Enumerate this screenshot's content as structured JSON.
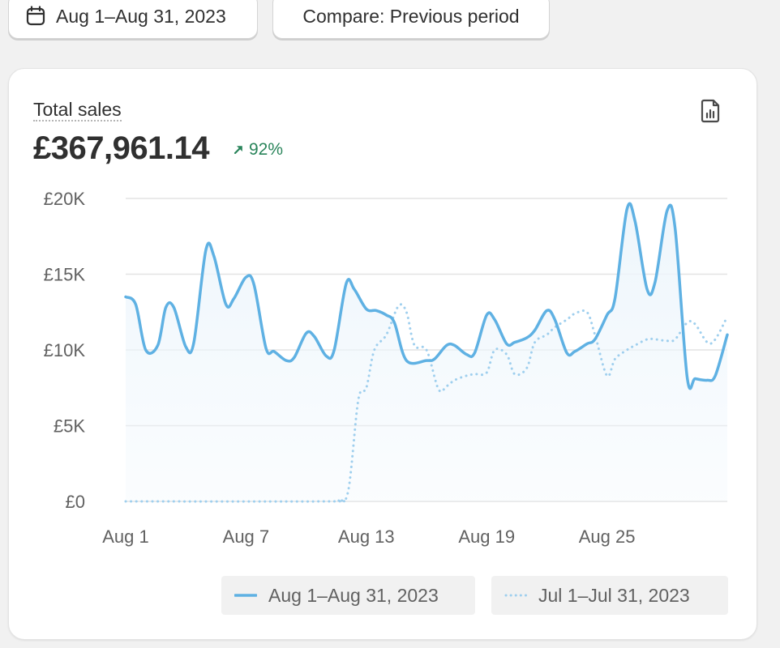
{
  "header": {
    "date_range": "Aug 1–Aug 31, 2023",
    "compare": "Compare: Previous period"
  },
  "card": {
    "title": "Total sales",
    "total": "£367,961.14",
    "change": "92%",
    "change_color": "#29845a"
  },
  "icons": {
    "calendar": "calendar-icon",
    "export": "export-report-icon",
    "change_arrow": "arrow-up-right-icon"
  },
  "colors": {
    "current_line": "#5fb1e3",
    "previous_line": "#9fcfee",
    "fill": "#eef6fc",
    "grid": "#e3e3e3"
  },
  "chart_data": {
    "type": "line",
    "title": "Total sales",
    "xlabel": "",
    "ylabel": "",
    "ylim": [
      0,
      20000
    ],
    "y_ticks": [
      {
        "value": 0,
        "label": "£0"
      },
      {
        "value": 5000,
        "label": "£5K"
      },
      {
        "value": 10000,
        "label": "£10K"
      },
      {
        "value": 15000,
        "label": "£15K"
      },
      {
        "value": 20000,
        "label": "£20K"
      }
    ],
    "x_ticks": [
      {
        "day": 1,
        "label": "Aug 1"
      },
      {
        "day": 7,
        "label": "Aug 7"
      },
      {
        "day": 13,
        "label": "Aug 13"
      },
      {
        "day": 19,
        "label": "Aug 19"
      },
      {
        "day": 25,
        "label": "Aug 25"
      }
    ],
    "legend_position": "bottom-right",
    "grid": true,
    "series": [
      {
        "name": "Aug 1–Aug 31, 2023",
        "style": "solid",
        "points": [
          [
            1,
            13500
          ],
          [
            1.5,
            13000
          ],
          [
            2,
            10000
          ],
          [
            2.6,
            10300
          ],
          [
            3,
            12800
          ],
          [
            3.4,
            12800
          ],
          [
            4,
            10200
          ],
          [
            4.4,
            10500
          ],
          [
            5,
            16600
          ],
          [
            5.4,
            16200
          ],
          [
            6,
            13000
          ],
          [
            6.4,
            13400
          ],
          [
            7,
            14800
          ],
          [
            7.4,
            14300
          ],
          [
            8,
            10100
          ],
          [
            8.4,
            9900
          ],
          [
            9,
            9300
          ],
          [
            9.4,
            9500
          ],
          [
            10,
            11100
          ],
          [
            10.4,
            10900
          ],
          [
            11,
            9600
          ],
          [
            11.4,
            10000
          ],
          [
            12,
            14400
          ],
          [
            12.4,
            14000
          ],
          [
            13,
            12700
          ],
          [
            13.5,
            12600
          ],
          [
            14,
            12300
          ],
          [
            14.4,
            11800
          ],
          [
            15,
            9300
          ],
          [
            16,
            9300
          ],
          [
            16.4,
            9400
          ],
          [
            17,
            10300
          ],
          [
            17.4,
            10300
          ],
          [
            18,
            9700
          ],
          [
            18.4,
            9800
          ],
          [
            19,
            12300
          ],
          [
            19.4,
            12000
          ],
          [
            20,
            10400
          ],
          [
            20.4,
            10500
          ],
          [
            21,
            10800
          ],
          [
            21.4,
            11300
          ],
          [
            22,
            12600
          ],
          [
            22.4,
            12000
          ],
          [
            23,
            9800
          ],
          [
            23.4,
            9900
          ],
          [
            24,
            10400
          ],
          [
            24.4,
            10700
          ],
          [
            25,
            12300
          ],
          [
            25.4,
            13400
          ],
          [
            26,
            19300
          ],
          [
            26.4,
            18500
          ],
          [
            27,
            14000
          ],
          [
            27.4,
            14500
          ],
          [
            28,
            19200
          ],
          [
            28.4,
            18000
          ],
          [
            29,
            8200
          ],
          [
            29.4,
            8100
          ],
          [
            30,
            8000
          ],
          [
            30.4,
            8300
          ],
          [
            31,
            11000
          ]
        ]
      },
      {
        "name": "Jul 1–Jul 31, 2023",
        "style": "dotted",
        "points": [
          [
            1,
            0
          ],
          [
            11,
            0
          ],
          [
            11.6,
            100
          ],
          [
            12.1,
            700
          ],
          [
            12.6,
            6700
          ],
          [
            13,
            7500
          ],
          [
            13.4,
            10000
          ],
          [
            14,
            11000
          ],
          [
            14.6,
            12900
          ],
          [
            15,
            12500
          ],
          [
            15.4,
            10300
          ],
          [
            16,
            10000
          ],
          [
            16.6,
            7400
          ],
          [
            17,
            7600
          ],
          [
            17.4,
            8000
          ],
          [
            18,
            8300
          ],
          [
            18.4,
            8400
          ],
          [
            19,
            8500
          ],
          [
            19.4,
            10000
          ],
          [
            20,
            9700
          ],
          [
            20.4,
            8400
          ],
          [
            21,
            8800
          ],
          [
            21.4,
            10500
          ],
          [
            22,
            11000
          ],
          [
            22.4,
            11500
          ],
          [
            23,
            12000
          ],
          [
            23.4,
            12400
          ],
          [
            24,
            12500
          ],
          [
            24.4,
            11000
          ],
          [
            25,
            8300
          ],
          [
            25.4,
            9400
          ],
          [
            26,
            10000
          ],
          [
            26.4,
            10300
          ],
          [
            27,
            10700
          ],
          [
            27.4,
            10700
          ],
          [
            28,
            10600
          ],
          [
            28.4,
            10700
          ],
          [
            29,
            11800
          ],
          [
            29.4,
            11700
          ],
          [
            30,
            10500
          ],
          [
            30.4,
            10700
          ],
          [
            31,
            12200
          ]
        ]
      }
    ]
  },
  "legend": [
    {
      "label": "Aug 1–Aug 31, 2023"
    },
    {
      "label": "Jul 1–Jul 31, 2023"
    }
  ]
}
